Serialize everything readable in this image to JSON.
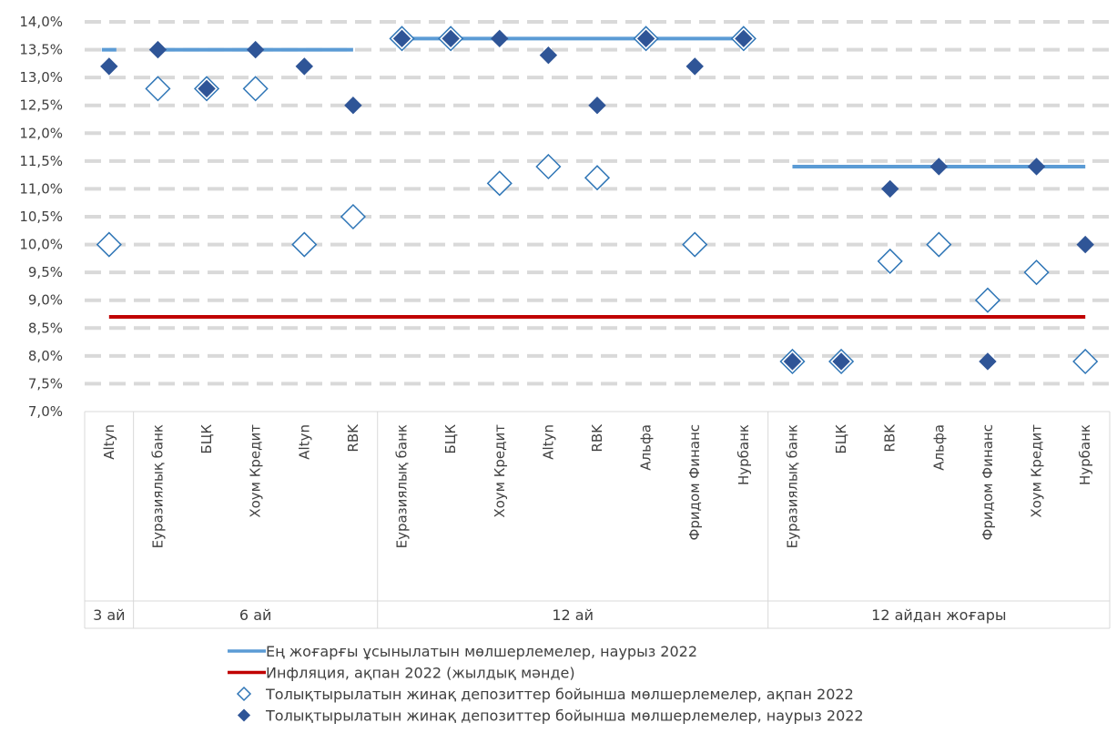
{
  "chart_data": {
    "type": "scatter",
    "y_axis": {
      "min": 7.0,
      "max": 14.0,
      "step": 0.5,
      "decimal_separator": ",",
      "unit": "%"
    },
    "grid": "horizontal dashed",
    "legend_position": "bottom",
    "groups": [
      {
        "label": "3 ай",
        "categories": [
          "Altyn"
        ]
      },
      {
        "label": "6 ай",
        "categories": [
          "Еуразиялық банк",
          "БЦК",
          "Хоум Кредит",
          "Altyn",
          "RBK"
        ]
      },
      {
        "label": "12 ай",
        "categories": [
          "Еуразиялық банк",
          "БЦК",
          "Хоум Кредит",
          "Altyn",
          "RBK",
          "Альфа",
          "Фридом Финанс",
          "Нурбанк"
        ]
      },
      {
        "label": "12 айдан жоғары",
        "categories": [
          "Еуразиялық банк",
          "БЦК",
          "RBK",
          "Альфа",
          "Фридом Финанс",
          "Хоум Кредит",
          "Нурбанк"
        ]
      }
    ],
    "series": [
      {
        "name": "Ең жоғарғы ұсынылатын мөлшерлемелер, наурыз 2022",
        "kind": "line",
        "color": "#5b9bd5",
        "values": [
          13.5,
          13.5,
          13.5,
          13.5,
          13.5,
          13.5,
          13.7,
          13.7,
          13.7,
          13.7,
          13.7,
          13.7,
          13.7,
          13.7,
          11.4,
          11.4,
          11.4,
          11.4,
          11.4,
          11.4,
          11.4
        ]
      },
      {
        "name": "Инфляция, ақпан 2022 (жылдық мәнде)",
        "kind": "line",
        "color": "#c00000",
        "values": [
          8.7,
          8.7,
          8.7,
          8.7,
          8.7,
          8.7,
          8.7,
          8.7,
          8.7,
          8.7,
          8.7,
          8.7,
          8.7,
          8.7,
          8.7,
          8.7,
          8.7,
          8.7,
          8.7,
          8.7,
          8.7
        ]
      },
      {
        "name": "Толықтырылатын жинақ депозиттер бойынша мөлшерлемелер, ақпан 2022",
        "kind": "marker-open-diamond",
        "color": "#2e75b6",
        "values": [
          10.0,
          12.8,
          12.8,
          12.8,
          10.0,
          10.5,
          13.7,
          13.7,
          11.1,
          11.4,
          11.2,
          13.7,
          10.0,
          13.7,
          7.9,
          7.9,
          9.7,
          10.0,
          9.0,
          9.5,
          7.9
        ]
      },
      {
        "name": "Толықтырылатын жинақ депозиттер бойынша мөлшерлемелер, наурыз 2022",
        "kind": "marker-filled-diamond",
        "color": "#2f5597",
        "values": [
          13.2,
          13.5,
          12.8,
          13.5,
          13.2,
          12.5,
          13.7,
          13.7,
          13.7,
          13.4,
          12.5,
          13.7,
          13.2,
          13.7,
          7.9,
          7.9,
          11.0,
          11.4,
          7.9,
          11.4,
          10.0
        ]
      }
    ]
  }
}
